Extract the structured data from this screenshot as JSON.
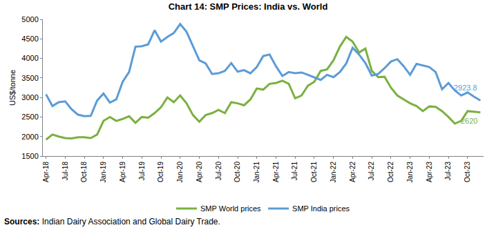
{
  "chart_data": {
    "type": "line",
    "title": "Chart 14: SMP Prices: India vs. World",
    "y_label": "US$/tonne",
    "source": "Sources: Indian Dairy Association and Global Dairy Trade.",
    "categories": [
      "Apr-18",
      null,
      null,
      "Jul-18",
      null,
      null,
      "Oct-18",
      null,
      null,
      "Jan-19",
      null,
      null,
      "Apr-19",
      null,
      null,
      "Jul-19",
      null,
      null,
      "Oct-19",
      null,
      null,
      "Jan-20",
      null,
      null,
      "Apr-20",
      null,
      null,
      "Jul-20",
      null,
      null,
      "Oct-20",
      null,
      null,
      "Jan-21",
      null,
      null,
      "Apr-21",
      null,
      null,
      "Jul-21",
      null,
      null,
      "Oct-21",
      null,
      null,
      "Jan-22",
      null,
      null,
      "Apr-22",
      null,
      null,
      "Jul-22",
      null,
      null,
      "Oct-22",
      null,
      null,
      "Jan-23",
      null,
      null,
      "Apr-23",
      null,
      null,
      "Jul-23",
      null,
      null,
      "Oct-23",
      null,
      null
    ],
    "series": [
      {
        "name": "SMP World prices",
        "color": "#7ab03f",
        "values": [
          1920,
          2050,
          2000,
          1960,
          1950,
          1980,
          1980,
          1960,
          2050,
          2400,
          2500,
          2400,
          2450,
          2520,
          2350,
          2500,
          2480,
          2600,
          2750,
          3000,
          2880,
          3050,
          2850,
          2550,
          2380,
          2550,
          2600,
          2680,
          2600,
          2880,
          2850,
          2800,
          2950,
          3230,
          3200,
          3350,
          3370,
          3430,
          3350,
          2980,
          3050,
          3300,
          3400,
          3680,
          3720,
          3950,
          4300,
          4550,
          4430,
          4150,
          4250,
          3680,
          3520,
          3530,
          3250,
          3050,
          2950,
          2850,
          2780,
          2650,
          2770,
          2760,
          2650,
          2500,
          2330,
          2400,
          2650,
          2630,
          2620
        ]
      },
      {
        "name": "SMP India prices",
        "color": "#5b9bd5",
        "values": [
          3080,
          2780,
          2880,
          2900,
          2700,
          2560,
          2520,
          2530,
          2920,
          3100,
          2870,
          2950,
          3400,
          3650,
          4300,
          4310,
          4360,
          4720,
          4430,
          4550,
          4650,
          4880,
          4680,
          4300,
          3950,
          3870,
          3600,
          3620,
          3680,
          3880,
          3660,
          3700,
          3620,
          3780,
          4060,
          4100,
          3800,
          3550,
          3650,
          3620,
          3640,
          3580,
          3520,
          3450,
          3580,
          3520,
          3650,
          3870,
          4270,
          4100,
          3880,
          3560,
          3600,
          3750,
          3920,
          3980,
          3800,
          3580,
          3860,
          3820,
          3780,
          3650,
          3210,
          3370,
          3180,
          3050,
          3130,
          3020,
          2923.8
        ]
      }
    ],
    "annotations": [
      {
        "series": "SMP India prices",
        "text": "2923.8"
      },
      {
        "series": "SMP World prices",
        "text": "2620"
      }
    ],
    "ylim": [
      1500,
      5000
    ],
    "yticks": [
      1500,
      2000,
      2500,
      3000,
      3500,
      4000,
      4500,
      5000
    ],
    "grid": false,
    "legend": "bottom"
  }
}
